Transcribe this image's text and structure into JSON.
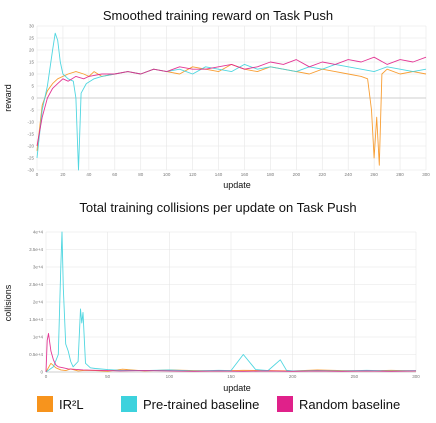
{
  "colors": {
    "IR2L": "#f7941d",
    "Pretrained": "#3dd2dd",
    "Random": "#e0218a",
    "grid": "#e6e6e6",
    "zero": "#cfcfcf"
  },
  "legend": [
    {
      "label": "IR²L",
      "color": "#f7941d"
    },
    {
      "label": "Pre-trained baseline",
      "color": "#3dd2dd"
    },
    {
      "label": "Random baseline",
      "color": "#e0218a"
    }
  ],
  "chart_data": [
    {
      "type": "line",
      "title": "Smoothed training reward on Task Push",
      "xlabel": "update",
      "ylabel": "reward",
      "xlim": [
        0,
        300
      ],
      "ylim": [
        -30,
        30
      ],
      "xticks": [
        0,
        20,
        40,
        60,
        80,
        100,
        120,
        140,
        160,
        180,
        200,
        220,
        240,
        260,
        280,
        300
      ],
      "yticks": [
        30,
        25,
        20,
        15,
        10,
        5,
        0,
        -5,
        -10,
        -15,
        -20,
        -25,
        -30
      ],
      "grid": true,
      "series": [
        {
          "name": "IR²L",
          "x": [
            0,
            4,
            8,
            12,
            16,
            20,
            24,
            30,
            36,
            40,
            44,
            50,
            60,
            70,
            80,
            90,
            100,
            110,
            120,
            130,
            140,
            150,
            160,
            170,
            180,
            190,
            200,
            210,
            220,
            230,
            240,
            250,
            255,
            258,
            260,
            262,
            264,
            266,
            270,
            280,
            290,
            300
          ],
          "y": [
            -22,
            -3,
            3,
            6,
            8,
            9,
            10,
            11,
            10,
            9,
            11,
            9,
            10,
            11,
            10,
            12,
            11,
            10,
            13,
            12,
            11,
            14,
            12,
            11,
            13,
            12,
            11,
            10,
            12,
            11,
            10,
            9,
            8,
            -5,
            -25,
            -8,
            -28,
            10,
            12,
            10,
            11,
            10
          ]
        },
        {
          "name": "Pre-trained baseline",
          "x": [
            0,
            4,
            8,
            12,
            14,
            16,
            18,
            20,
            24,
            28,
            30,
            32,
            34,
            38,
            44,
            50,
            60,
            70,
            80,
            90,
            100,
            110,
            120,
            130,
            140,
            150,
            160,
            170,
            180,
            190,
            200,
            210,
            220,
            230,
            240,
            250,
            260,
            270,
            280,
            290,
            300
          ],
          "y": [
            -25,
            -5,
            5,
            20,
            27,
            24,
            15,
            10,
            8,
            7,
            0,
            -30,
            2,
            6,
            8,
            9,
            10,
            11,
            10,
            12,
            11,
            12,
            10,
            13,
            12,
            11,
            14,
            12,
            13,
            12,
            11,
            13,
            12,
            14,
            13,
            12,
            11,
            13,
            12,
            11,
            12
          ]
        },
        {
          "name": "Random baseline",
          "x": [
            0,
            4,
            8,
            12,
            16,
            20,
            24,
            30,
            36,
            40,
            50,
            60,
            70,
            80,
            90,
            100,
            110,
            120,
            130,
            140,
            150,
            160,
            170,
            180,
            190,
            200,
            210,
            220,
            230,
            240,
            250,
            260,
            270,
            280,
            290,
            300
          ],
          "y": [
            -20,
            -8,
            0,
            4,
            6,
            8,
            7,
            9,
            8,
            9,
            10,
            10,
            11,
            10,
            12,
            11,
            13,
            12,
            12,
            13,
            14,
            12,
            13,
            15,
            14,
            16,
            13,
            15,
            14,
            16,
            15,
            17,
            14,
            16,
            15,
            17
          ]
        }
      ]
    },
    {
      "type": "line",
      "title": "Total training collisions per update on Task Push",
      "xlabel": "update",
      "ylabel": "collisions",
      "xlim": [
        0,
        300
      ],
      "ylim": [
        0,
        40000
      ],
      "xticks": [
        0,
        50,
        100,
        150,
        200,
        250,
        300
      ],
      "yticks": [
        0,
        5000,
        10000,
        15000,
        20000,
        25000,
        30000,
        35000,
        40000
      ],
      "grid": true,
      "series": [
        {
          "name": "IR²L",
          "x": [
            0,
            4,
            8,
            12,
            16,
            20,
            26,
            32,
            40,
            50,
            62,
            80,
            100,
            120,
            140,
            160,
            180,
            200,
            220,
            240,
            260,
            280,
            300
          ],
          "y": [
            0,
            2500,
            1200,
            600,
            400,
            900,
            300,
            500,
            400,
            200,
            800,
            300,
            600,
            400,
            300,
            500,
            400,
            300,
            600,
            400,
            300,
            500,
            300
          ]
        },
        {
          "name": "Pre-trained baseline",
          "x": [
            0,
            6,
            10,
            12,
            13,
            14,
            16,
            18,
            20,
            22,
            26,
            28,
            29,
            30,
            32,
            36,
            40,
            50,
            60,
            80,
            100,
            120,
            140,
            150,
            160,
            170,
            180,
            190,
            195,
            200,
            220,
            240,
            260,
            280,
            300
          ],
          "y": [
            0,
            1500,
            5000,
            30000,
            40000,
            24000,
            8000,
            6000,
            3000,
            1500,
            3000,
            18000,
            14000,
            17000,
            2500,
            1200,
            1000,
            700,
            500,
            400,
            600,
            300,
            500,
            400,
            5000,
            700,
            400,
            3500,
            500,
            300,
            400,
            300,
            500,
            300,
            400
          ]
        },
        {
          "name": "Random baseline",
          "x": [
            0,
            1,
            2,
            4,
            6,
            8,
            10,
            14,
            18,
            22,
            30,
            40,
            50,
            60,
            80,
            100,
            120,
            140,
            160,
            180,
            200,
            220,
            240,
            260,
            280,
            300
          ],
          "y": [
            0,
            9000,
            11000,
            6000,
            3500,
            2000,
            1500,
            1200,
            900,
            800,
            600,
            500,
            400,
            300,
            400,
            300,
            200,
            300,
            200,
            300,
            200,
            300,
            200,
            300,
            200,
            300
          ]
        }
      ]
    }
  ]
}
